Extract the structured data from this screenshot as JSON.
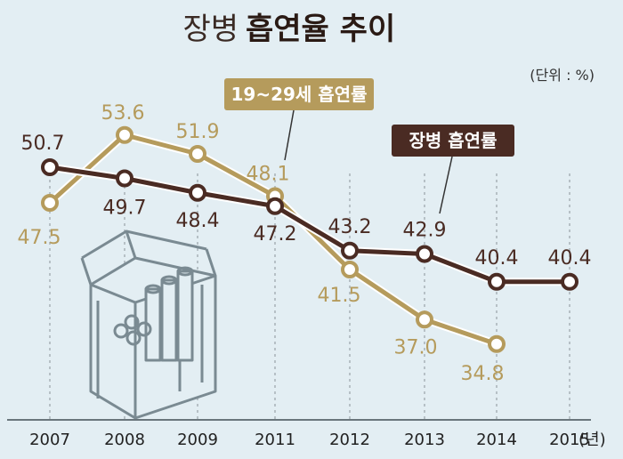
{
  "title_light": "장병",
  "title_bold": "흡연율 추이",
  "unit": "(단위 : %)",
  "colors": {
    "background": "#e3eef3",
    "young": "#b59b5c",
    "soldier": "#4a2b23",
    "grid": "#9aa3a8"
  },
  "chart_data": {
    "type": "line",
    "categories": [
      "2007",
      "2008",
      "2009",
      "2011",
      "2012",
      "2013",
      "2014",
      "2015"
    ],
    "x_unit": "(년)",
    "ylim": [
      30,
      56
    ],
    "grid": true,
    "series": [
      {
        "name": "장병 흡연률",
        "values": [
          50.7,
          49.7,
          48.4,
          47.2,
          43.2,
          42.9,
          40.4,
          40.4
        ],
        "labels": [
          "50.7",
          "49.7",
          "48.4",
          "47.2",
          "43.2",
          "42.9",
          "40.4",
          "40.4"
        ]
      },
      {
        "name": "19~29세 흡연률",
        "values": [
          47.5,
          53.6,
          51.9,
          48.1,
          41.5,
          37.0,
          34.8,
          null
        ],
        "labels": [
          "47.5",
          "53.6",
          "51.9",
          "48.1",
          "41.5",
          "37.0",
          "34.8",
          null
        ]
      }
    ]
  }
}
